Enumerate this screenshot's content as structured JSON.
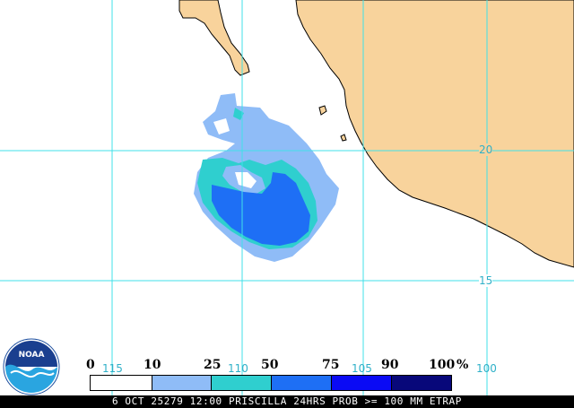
{
  "map": {
    "colors": {
      "land": "#f8d39c",
      "ocean": "#ffffff",
      "grid": "#40e0e8",
      "prob_10": "#8fbcf7",
      "prob_25": "#2fcfcf",
      "prob_50": "#1e6ff5",
      "prob_75": "#0a0af5",
      "prob_90": "#08087a"
    },
    "lon_labels": [
      "115",
      "110",
      "105",
      "100"
    ],
    "lat_labels": [
      "20",
      "15"
    ]
  },
  "legend": {
    "thresholds": [
      "0",
      "10",
      "25",
      "50",
      "75",
      "90",
      "100"
    ],
    "unit": "%"
  },
  "status": {
    "text": "6 OCT 25279 12:00 PRISCILLA 24HRS PROB >= 100 MM ETRAP"
  },
  "logo": {
    "text": "NOAA"
  }
}
